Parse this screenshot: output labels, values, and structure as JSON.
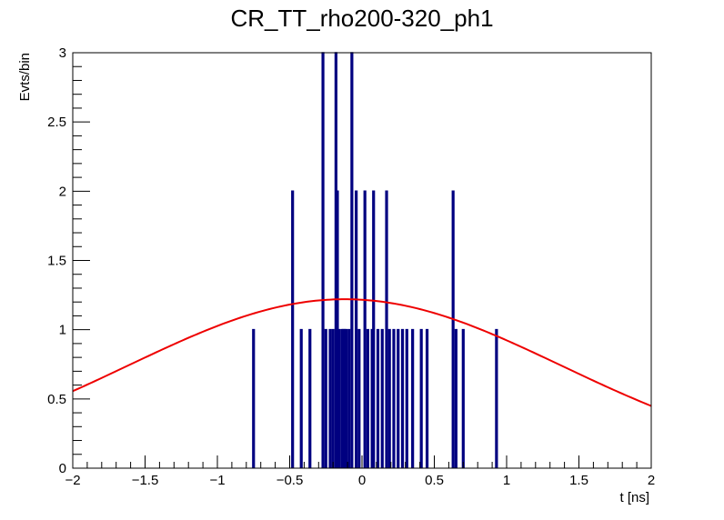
{
  "chart_data": {
    "type": "histogram",
    "title": "CR_TT_rho200-320_ph1",
    "xlabel": "t [ns]",
    "ylabel": "Evts/bin",
    "xlim": [
      -2,
      2
    ],
    "ylim": [
      0,
      3
    ],
    "x_ticks": [
      {
        "value": -2,
        "label": "−2"
      },
      {
        "value": -1.5,
        "label": "−1.5"
      },
      {
        "value": -1,
        "label": "−1"
      },
      {
        "value": -0.5,
        "label": "−0.5"
      },
      {
        "value": 0,
        "label": "0"
      },
      {
        "value": 0.5,
        "label": "0.5"
      },
      {
        "value": 1,
        "label": "1"
      },
      {
        "value": 1.5,
        "label": "1.5"
      },
      {
        "value": 2,
        "label": "2"
      }
    ],
    "y_ticks": [
      {
        "value": 0,
        "label": "0"
      },
      {
        "value": 0.5,
        "label": "0.5"
      },
      {
        "value": 1,
        "label": "1"
      },
      {
        "value": 1.5,
        "label": "1.5"
      },
      {
        "value": 2,
        "label": "2"
      },
      {
        "value": 2.5,
        "label": "2.5"
      },
      {
        "value": 3,
        "label": "3"
      }
    ],
    "bin_width": 0.01,
    "histogram_color": "#000080",
    "fit_color": "#ee0000",
    "bins": [
      {
        "x": -0.75,
        "count": 1
      },
      {
        "x": -0.48,
        "count": 2
      },
      {
        "x": -0.42,
        "count": 1
      },
      {
        "x": -0.36,
        "count": 1
      },
      {
        "x": -0.27,
        "count": 3
      },
      {
        "x": -0.25,
        "count": 1
      },
      {
        "x": -0.22,
        "count": 1
      },
      {
        "x": -0.2,
        "count": 1
      },
      {
        "x": -0.18,
        "count": 3
      },
      {
        "x": -0.17,
        "count": 2
      },
      {
        "x": -0.16,
        "count": 1
      },
      {
        "x": -0.14,
        "count": 1
      },
      {
        "x": -0.13,
        "count": 1
      },
      {
        "x": -0.12,
        "count": 1
      },
      {
        "x": -0.11,
        "count": 1
      },
      {
        "x": -0.09,
        "count": 1
      },
      {
        "x": -0.07,
        "count": 3
      },
      {
        "x": -0.04,
        "count": 2
      },
      {
        "x": -0.02,
        "count": 1
      },
      {
        "x": 0.02,
        "count": 2
      },
      {
        "x": 0.04,
        "count": 1
      },
      {
        "x": 0.07,
        "count": 1
      },
      {
        "x": 0.08,
        "count": 2
      },
      {
        "x": 0.11,
        "count": 1
      },
      {
        "x": 0.14,
        "count": 1
      },
      {
        "x": 0.17,
        "count": 2
      },
      {
        "x": 0.19,
        "count": 1
      },
      {
        "x": 0.22,
        "count": 1
      },
      {
        "x": 0.25,
        "count": 1
      },
      {
        "x": 0.28,
        "count": 1
      },
      {
        "x": 0.31,
        "count": 1
      },
      {
        "x": 0.35,
        "count": 1
      },
      {
        "x": 0.41,
        "count": 1
      },
      {
        "x": 0.45,
        "count": 1
      },
      {
        "x": 0.63,
        "count": 2
      },
      {
        "x": 0.65,
        "count": 1
      },
      {
        "x": 0.7,
        "count": 1
      },
      {
        "x": 0.93,
        "count": 1
      }
    ],
    "fit_curve": {
      "shape": "gaussian",
      "amplitude": 1.22,
      "mean": -0.12,
      "sigma": 1.5
    }
  }
}
